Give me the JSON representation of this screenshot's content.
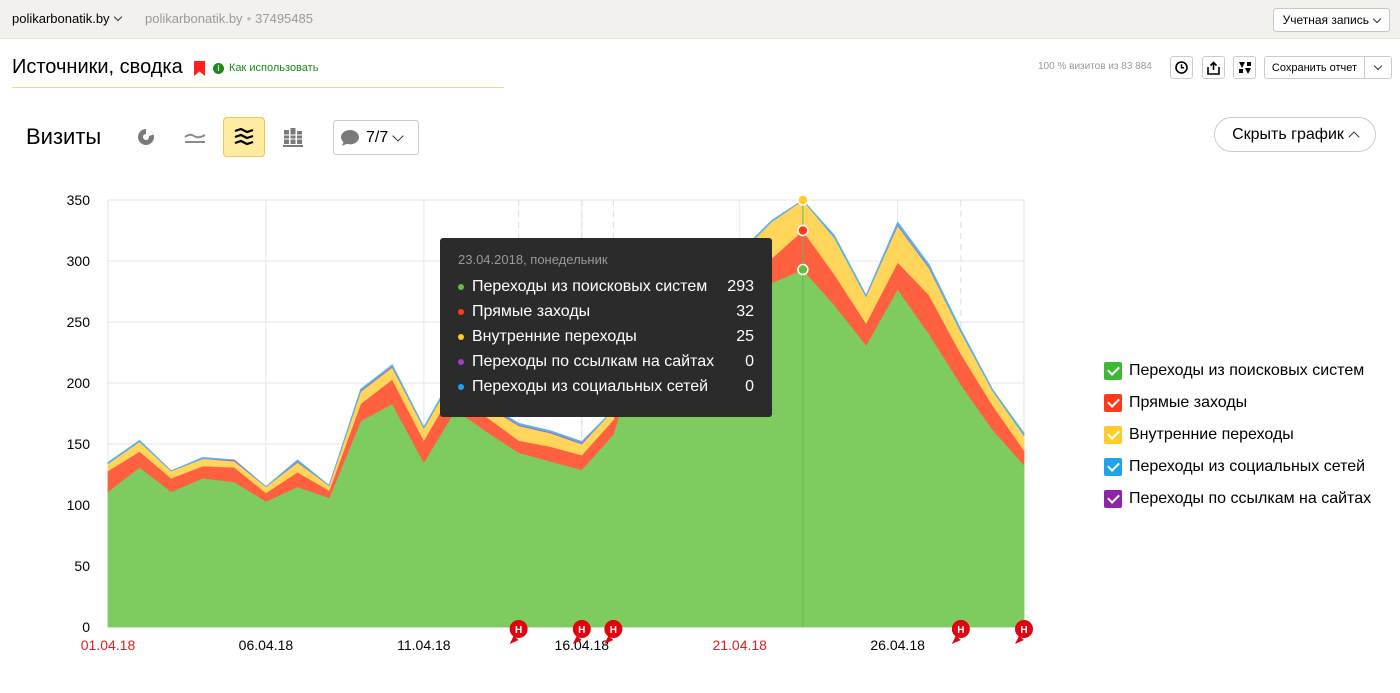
{
  "topbar": {
    "site": "polikarbonatik.by",
    "site_name": "polikarbonatik.by",
    "counter_id": "37495485",
    "account_label": "Учетная запись"
  },
  "header": {
    "title": "Источники, сводка",
    "howto_label": "Как использовать",
    "visits_share": "100 % визитов из 83 884",
    "save_report_label": "Сохранить отчет"
  },
  "controls": {
    "metric": "Визиты",
    "series_count": "7/7",
    "hide_chart_label": "Скрыть график"
  },
  "tooltip": {
    "date": "23.04.2018, понедельник",
    "rows": [
      {
        "name": "Переходы из поисковых систем",
        "value": "293",
        "color": "#61bf3a"
      },
      {
        "name": "Прямые заходы",
        "value": "32",
        "color": "#ff3c1a"
      },
      {
        "name": "Внутренние переходы",
        "value": "25",
        "color": "#ffcc2b"
      },
      {
        "name": "Переходы по ссылкам на сайтах",
        "value": "0",
        "color": "#a03ec5"
      },
      {
        "name": "Переходы из социальных сетей",
        "value": "0",
        "color": "#1ea3ef"
      }
    ]
  },
  "legend": [
    {
      "label": "Переходы из поисковых систем",
      "color": "#3fb836"
    },
    {
      "label": "Прямые заходы",
      "color": "#ff3a1c"
    },
    {
      "label": "Внутренние переходы",
      "color": "#ffcc2b"
    },
    {
      "label": "Переходы из социальных сетей",
      "color": "#1ea3ef"
    },
    {
      "label": "Переходы по ссылкам на сайтах",
      "color": "#8e24aa"
    }
  ],
  "annotation_label": "Н",
  "chart_data": {
    "type": "area",
    "stacked": true,
    "x": [
      "01.04.18",
      "02.04.18",
      "03.04.18",
      "04.04.18",
      "05.04.18",
      "06.04.18",
      "07.04.18",
      "08.04.18",
      "09.04.18",
      "10.04.18",
      "11.04.18",
      "12.04.18",
      "13.04.18",
      "14.04.18",
      "15.04.18",
      "16.04.18",
      "17.04.18",
      "18.04.18",
      "19.04.18",
      "20.04.18",
      "21.04.18",
      "22.04.18",
      "23.04.18",
      "24.04.18",
      "25.04.18",
      "26.04.18",
      "27.04.18",
      "28.04.18",
      "29.04.18",
      "30.04.18"
    ],
    "x_tick_labels": [
      "01.04.18",
      "06.04.18",
      "11.04.18",
      "16.04.18",
      "21.04.18",
      "26.04.18"
    ],
    "weekend_tick_labels": [
      "01.04.18",
      "21.04.18"
    ],
    "ylim": [
      0,
      350
    ],
    "y_ticks": [
      0,
      50,
      100,
      150,
      200,
      250,
      300,
      350
    ],
    "grid": true,
    "legend_position": "right",
    "highlighted_x": "23.04.18",
    "annotations_x": [
      "14.04.18",
      "16.04.18",
      "17.04.18",
      "28.04.18",
      "30.04.18"
    ],
    "series": [
      {
        "name": "Переходы из поисковых систем",
        "color": "#7ecb60",
        "values": [
          111,
          131,
          111,
          122,
          119,
          103,
          115,
          106,
          169,
          183,
          135,
          178,
          160,
          143,
          136,
          129,
          158,
          245,
          252,
          262,
          266,
          282,
          293,
          264,
          231,
          277,
          240,
          199,
          162,
          133
        ]
      },
      {
        "name": "Прямые заходы",
        "color": "#ff6040",
        "values": [
          17,
          13,
          11,
          10,
          12,
          7,
          12,
          6,
          14,
          20,
          18,
          20,
          12,
          10,
          12,
          12,
          12,
          20,
          20,
          20,
          20,
          20,
          32,
          25,
          18,
          22,
          32,
          25,
          20,
          12
        ]
      },
      {
        "name": "Внутренние переходы",
        "color": "#ffd65a",
        "values": [
          6,
          8,
          6,
          6,
          5,
          5,
          8,
          4,
          10,
          10,
          10,
          10,
          9,
          12,
          11,
          9,
          8,
          18,
          20,
          20,
          20,
          30,
          25,
          30,
          22,
          30,
          22,
          18,
          12,
          12
        ]
      },
      {
        "name": "Переходы по ссылкам на сайтах",
        "color": "#a070c8",
        "values": [
          0,
          0,
          0,
          0,
          1,
          0,
          1,
          0,
          1,
          1,
          0,
          1,
          1,
          1,
          1,
          1,
          0,
          0,
          0,
          0,
          0,
          0,
          0,
          0,
          0,
          1,
          1,
          0,
          0,
          0
        ]
      },
      {
        "name": "Переходы из социальных сетей",
        "color": "#5bb3e8",
        "values": [
          1,
          1,
          0,
          1,
          0,
          0,
          1,
          0,
          1,
          1,
          1,
          1,
          1,
          1,
          1,
          1,
          0,
          1,
          1,
          1,
          1,
          1,
          0,
          2,
          1,
          2,
          2,
          2,
          1,
          2
        ]
      }
    ]
  }
}
